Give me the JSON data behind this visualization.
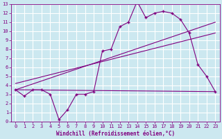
{
  "xlabel": "Windchill (Refroidissement éolien,°C)",
  "bg_color": "#cce8f0",
  "line_color": "#800080",
  "grid_color": "#ffffff",
  "xlim": [
    -0.5,
    23.5
  ],
  "ylim": [
    0,
    13
  ],
  "xticks": [
    0,
    1,
    2,
    3,
    4,
    5,
    6,
    7,
    8,
    9,
    10,
    11,
    12,
    13,
    14,
    15,
    16,
    17,
    18,
    19,
    20,
    21,
    22,
    23
  ],
  "yticks": [
    0,
    1,
    2,
    3,
    4,
    5,
    6,
    7,
    8,
    9,
    10,
    11,
    12,
    13
  ],
  "main_x": [
    0,
    1,
    2,
    3,
    4,
    5,
    6,
    7,
    8,
    9,
    10,
    11,
    12,
    13,
    14,
    15,
    16,
    17,
    18,
    19,
    20,
    21,
    22,
    23
  ],
  "main_y": [
    3.5,
    2.8,
    3.5,
    3.5,
    3.0,
    0.2,
    1.3,
    3.0,
    3.0,
    3.3,
    7.8,
    8.0,
    10.5,
    11.0,
    13.3,
    11.5,
    12.0,
    12.2,
    12.0,
    11.3,
    9.8,
    6.3,
    5.0,
    3.3
  ],
  "line1_x": [
    0,
    23
  ],
  "line1_y": [
    3.5,
    3.3
  ],
  "line2_x": [
    0,
    23
  ],
  "line2_y": [
    3.5,
    11.0
  ],
  "line3_x": [
    0,
    23
  ],
  "line3_y": [
    4.2,
    9.8
  ]
}
